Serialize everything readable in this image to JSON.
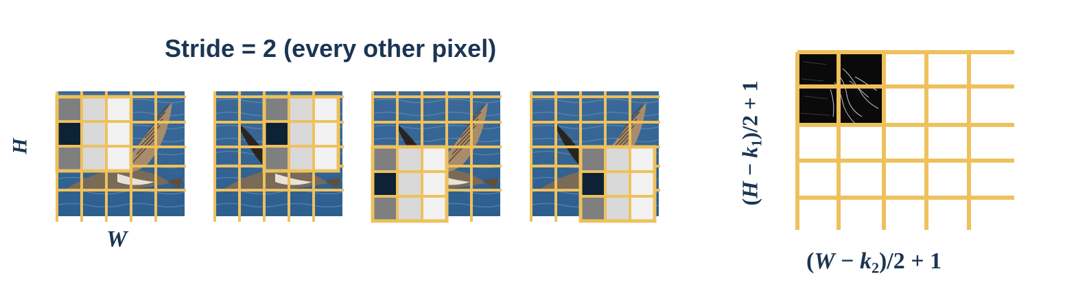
{
  "title": "Stride = 2 (every other pixel)",
  "stride": 2,
  "labels": {
    "height": "H",
    "width": "W",
    "output_height": {
      "open": "(",
      "var": "H",
      "minus": " − ",
      "k": "k",
      "k_sub": "1",
      "rest": ")/2 + 1"
    },
    "output_width": {
      "open": "(",
      "var": "W",
      "minus": " − ",
      "k": "k",
      "k_sub": "2",
      "rest": ")/2 + 1"
    }
  },
  "input_grid": {
    "rows": 5,
    "cols": 5
  },
  "kernel": {
    "size": [
      3,
      3
    ],
    "positions": [
      [
        0,
        0
      ],
      [
        0,
        2
      ],
      [
        2,
        0
      ],
      [
        2,
        2
      ]
    ]
  },
  "output_grid": {
    "rows": 2,
    "cols": 2,
    "grid_lines": 5
  },
  "colors": {
    "grid_line": "#eec15d",
    "text": "#1b3553",
    "kernel_dark": "#0e2236",
    "kernel_mid": "#7f7f7f",
    "kernel_light": "#d9d9d9",
    "kernel_white": "#f2f2f2",
    "water_top": "#3b6a99",
    "water_bottom": "#2d5f8e",
    "feature_map": "#0a0a0a"
  }
}
